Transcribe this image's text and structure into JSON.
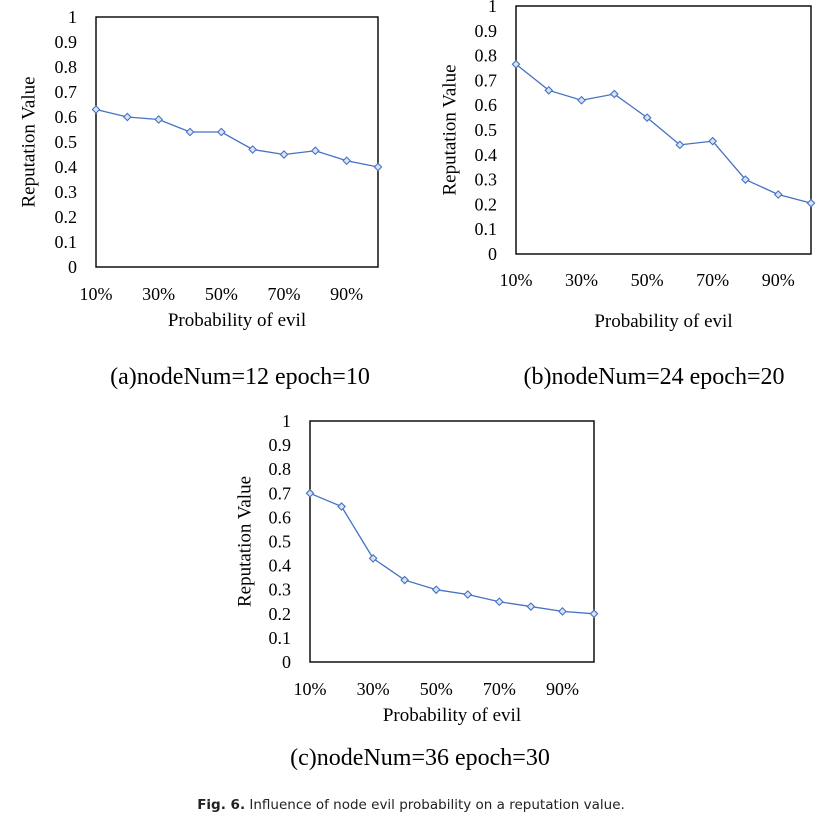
{
  "caption": {
    "label": "Fig. 6.",
    "text": "Influence of node evil probability on a reputation value."
  },
  "colors": {
    "line": "#4472c4",
    "marker": "#4472c4",
    "axis": "#000000"
  },
  "chart_data": [
    {
      "type": "line",
      "subcaption": "(a)nodeNum=12 epoch=10",
      "xlabel": "Probability of evil",
      "ylabel": "Reputation Value",
      "categories": [
        "10%",
        "20%",
        "30%",
        "40%",
        "50%",
        "60%",
        "70%",
        "80%",
        "90%",
        "100%"
      ],
      "x_tick_labels": [
        "10%",
        "30%",
        "50%",
        "70%",
        "90%"
      ],
      "y_tick_labels": [
        "0",
        "0.1",
        "0.2",
        "0.3",
        "0.4",
        "0.5",
        "0.6",
        "0.7",
        "0.8",
        "0.9",
        "1"
      ],
      "ylim": [
        0,
        1
      ],
      "series": [
        {
          "values": [
            0.63,
            0.6,
            0.59,
            0.54,
            0.54,
            0.47,
            0.45,
            0.465,
            0.425,
            0.4
          ]
        }
      ],
      "grid": false,
      "marker": "diamond"
    },
    {
      "type": "line",
      "subcaption": "(b)nodeNum=24 epoch=20",
      "xlabel": "Probability of  evil",
      "ylabel": "Reputation Value",
      "categories": [
        "10%",
        "20%",
        "30%",
        "40%",
        "50%",
        "60%",
        "70%",
        "80%",
        "90%",
        "100%"
      ],
      "x_tick_labels": [
        "10%",
        "30%",
        "50%",
        "70%",
        "90%"
      ],
      "y_tick_labels": [
        "0",
        "0.1",
        "0.2",
        "0.3",
        "0.4",
        "0.5",
        "0.6",
        "0.7",
        "0.8",
        "0.9",
        "1"
      ],
      "ylim": [
        0,
        1
      ],
      "series": [
        {
          "values": [
            0.765,
            0.66,
            0.62,
            0.645,
            0.55,
            0.44,
            0.455,
            0.3,
            0.24,
            0.205
          ]
        }
      ],
      "grid": false,
      "marker": "diamond"
    },
    {
      "type": "line",
      "subcaption": "(c)nodeNum=36 epoch=30",
      "xlabel": "Probability of evil",
      "ylabel": "Reputation  Value",
      "categories": [
        "10%",
        "20%",
        "30%",
        "40%",
        "50%",
        "60%",
        "70%",
        "80%",
        "90%",
        "100%"
      ],
      "x_tick_labels": [
        "10%",
        "30%",
        "50%",
        "70%",
        "90%"
      ],
      "y_tick_labels": [
        "0",
        "0.1",
        "0.2",
        "0.3",
        "0.4",
        "0.5",
        "0.6",
        "0.7",
        "0.8",
        "0.9",
        "1"
      ],
      "ylim": [
        0,
        1
      ],
      "series": [
        {
          "values": [
            0.7,
            0.645,
            0.43,
            0.34,
            0.3,
            0.28,
            0.25,
            0.23,
            0.21,
            0.2
          ]
        }
      ],
      "grid": false,
      "marker": "diamond"
    }
  ]
}
